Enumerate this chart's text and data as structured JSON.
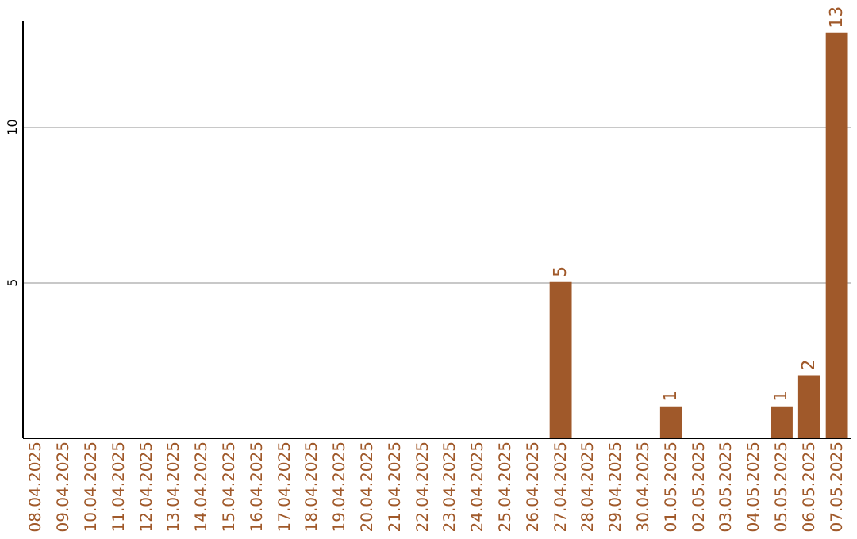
{
  "chart_data": {
    "type": "bar",
    "categories": [
      "08.04.2025",
      "09.04.2025",
      "10.04.2025",
      "11.04.2025",
      "12.04.2025",
      "13.04.2025",
      "14.04.2025",
      "15.04.2025",
      "16.04.2025",
      "17.04.2025",
      "18.04.2025",
      "19.04.2025",
      "20.04.2025",
      "21.04.2025",
      "22.04.2025",
      "23.04.2025",
      "24.04.2025",
      "25.04.2025",
      "26.04.2025",
      "27.04.2025",
      "28.04.2025",
      "29.04.2025",
      "30.04.2025",
      "01.05.2025",
      "02.05.2025",
      "03.05.2025",
      "04.05.2025",
      "05.05.2025",
      "06.05.2025",
      "07.05.2025"
    ],
    "values": [
      0,
      0,
      0,
      0,
      0,
      0,
      0,
      0,
      0,
      0,
      0,
      0,
      0,
      0,
      0,
      0,
      0,
      0,
      0,
      5,
      0,
      0,
      0,
      1,
      0,
      0,
      0,
      1,
      2,
      13
    ],
    "value_labels": [
      null,
      null,
      null,
      null,
      null,
      null,
      null,
      null,
      null,
      null,
      null,
      null,
      null,
      null,
      null,
      null,
      null,
      null,
      null,
      "5",
      null,
      null,
      null,
      "1",
      null,
      null,
      null,
      "1",
      "2",
      "13"
    ],
    "color": "#a0592a",
    "ylim": [
      0,
      13.4
    ],
    "yticks": [
      5,
      10
    ],
    "grid": "y"
  }
}
